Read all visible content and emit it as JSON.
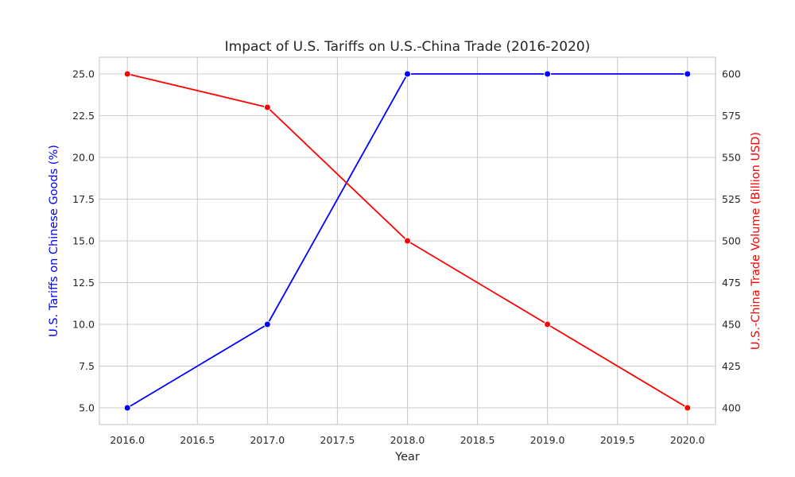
{
  "chart_data": {
    "type": "line",
    "title": "Impact of U.S. Tariffs on U.S.-China Trade (2016-2020)",
    "xlabel": "Year",
    "x": [
      2016,
      2017,
      2018,
      2019,
      2020
    ],
    "xlim": [
      2015.8,
      2020.2
    ],
    "xticks": [
      2016.0,
      2016.5,
      2017.0,
      2017.5,
      2018.0,
      2018.5,
      2019.0,
      2019.5,
      2020.0
    ],
    "xtick_labels": [
      "2016.0",
      "2016.5",
      "2017.0",
      "2017.5",
      "2018.0",
      "2018.5",
      "2019.0",
      "2019.5",
      "2020.0"
    ],
    "grid": true,
    "left_axis": {
      "label": "U.S. Tariffs on Chinese Goods (%)",
      "color": "#0000ff",
      "ylim": [
        4.0,
        26.0
      ],
      "ticks": [
        5.0,
        7.5,
        10.0,
        12.5,
        15.0,
        17.5,
        20.0,
        22.5,
        25.0
      ],
      "tick_labels": [
        "5.0",
        "7.5",
        "10.0",
        "12.5",
        "15.0",
        "17.5",
        "20.0",
        "22.5",
        "25.0"
      ]
    },
    "right_axis": {
      "label": "U.S.-China Trade Volume (Billion USD)",
      "color": "#ff0000",
      "ylim": [
        390,
        610
      ],
      "ticks": [
        400,
        425,
        450,
        475,
        500,
        525,
        550,
        575,
        600
      ],
      "tick_labels": [
        "400",
        "425",
        "450",
        "475",
        "500",
        "525",
        "550",
        "575",
        "600"
      ]
    },
    "series": [
      {
        "axis": "left",
        "color": "#0000ff",
        "values": [
          5,
          10,
          25,
          25,
          25
        ]
      },
      {
        "axis": "right",
        "color": "#ff0000",
        "values": [
          600,
          580,
          500,
          450,
          400
        ]
      }
    ]
  }
}
